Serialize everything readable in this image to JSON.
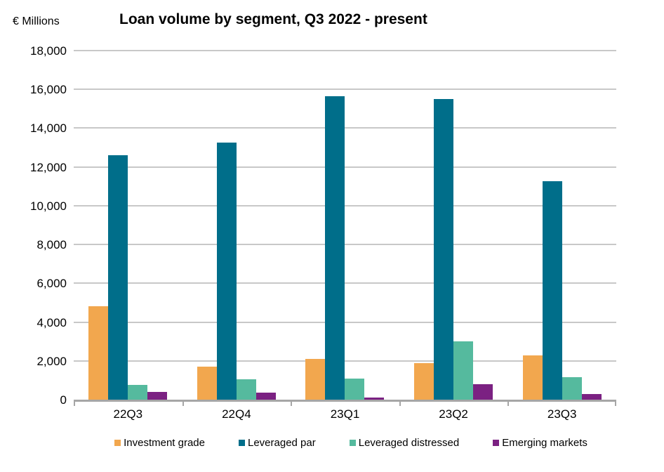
{
  "header": {
    "unit_label": "€ Millions",
    "title": "Loan volume by segment, Q3 2022 - present"
  },
  "chart_data": {
    "type": "bar",
    "title": "Loan volume by segment, Q3 2022 - present",
    "ylabel": "€ Millions",
    "categories": [
      "22Q3",
      "22Q4",
      "23Q1",
      "23Q2",
      "23Q3"
    ],
    "series": [
      {
        "name": "Investment grade",
        "color": "#F2A74E",
        "values": [
          4800,
          1700,
          2100,
          1900,
          2300
        ]
      },
      {
        "name": "Leveraged par",
        "color": "#006E8A",
        "values": [
          12600,
          13250,
          15650,
          15500,
          11250
        ]
      },
      {
        "name": "Leveraged distressed",
        "color": "#55BA9E",
        "values": [
          750,
          1050,
          1100,
          3000,
          1150
        ]
      },
      {
        "name": "Emerging markets",
        "color": "#7B2182",
        "values": [
          400,
          350,
          100,
          800,
          300
        ]
      }
    ],
    "ylim": [
      0,
      18000
    ],
    "ytick_step": 2000,
    "grid": "horizontal",
    "legend_position": "bottom",
    "colors": {
      "gridline": "#C8C8C8",
      "axis": "#A6A6A6",
      "text": "#000000"
    }
  }
}
